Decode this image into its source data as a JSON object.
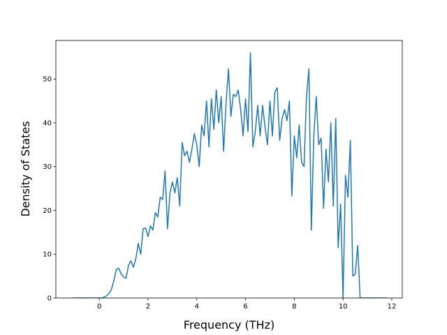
{
  "chart_data": {
    "type": "line",
    "x_label": "Frequency (THz)",
    "y_label": "Density of States",
    "x": [
      -1.1,
      0,
      0.1,
      0.2,
      0.3,
      0.4,
      0.5,
      0.6,
      0.7,
      0.8,
      0.9,
      1.0,
      1.1,
      1.2,
      1.3,
      1.4,
      1.5,
      1.6,
      1.7,
      1.8,
      1.9,
      2.0,
      2.1,
      2.2,
      2.3,
      2.4,
      2.5,
      2.6,
      2.7,
      2.8,
      2.9,
      3.0,
      3.1,
      3.2,
      3.3,
      3.4,
      3.5,
      3.6,
      3.7,
      3.8,
      3.9,
      4.0,
      4.1,
      4.2,
      4.3,
      4.4,
      4.5,
      4.6,
      4.7,
      4.8,
      4.9,
      5.0,
      5.1,
      5.2,
      5.3,
      5.4,
      5.5,
      5.6,
      5.7,
      5.8,
      5.9,
      6.0,
      6.1,
      6.2,
      6.3,
      6.4,
      6.5,
      6.6,
      6.7,
      6.8,
      6.9,
      7.0,
      7.1,
      7.2,
      7.3,
      7.4,
      7.5,
      7.6,
      7.7,
      7.8,
      7.9,
      8.0,
      8.1,
      8.2,
      8.3,
      8.4,
      8.5,
      8.6,
      8.7,
      8.8,
      8.9,
      9.0,
      9.1,
      9.2,
      9.3,
      9.4,
      9.5,
      9.6,
      9.7,
      9.8,
      9.9,
      10.0,
      10.1,
      10.2,
      10.3,
      10.4,
      10.5,
      10.6,
      10.7,
      10.8,
      11.8
    ],
    "values": [
      0,
      0,
      0,
      0.2,
      0.5,
      1,
      2,
      4,
      6.5,
      6.8,
      5.5,
      4.8,
      4.5,
      7.5,
      8.5,
      7,
      9,
      12.5,
      10,
      15.8,
      16,
      14,
      16.5,
      15.5,
      19.5,
      18.5,
      23,
      22.5,
      29,
      15.8,
      24,
      26.5,
      24,
      27.5,
      21,
      35.5,
      32.5,
      33.5,
      31,
      34,
      37.5,
      35,
      30,
      39.5,
      37,
      45,
      34.5,
      45.5,
      38.5,
      47.5,
      40,
      46,
      33.5,
      44.5,
      52.3,
      41.5,
      46.5,
      46,
      47.5,
      43,
      37,
      45.5,
      38,
      56,
      34.5,
      38,
      44,
      37,
      44,
      39,
      35,
      45,
      37,
      47,
      48,
      36,
      41,
      43,
      40.5,
      45,
      23.3,
      37,
      32,
      39.5,
      31,
      30,
      46,
      52.3,
      15.5,
      37,
      46,
      35,
      36.5,
      20.5,
      34,
      26.5,
      40,
      21,
      41,
      11.5,
      21.5,
      0,
      28,
      23,
      36,
      5,
      5.5,
      12,
      0,
      0,
      0
    ],
    "color": "#1f77b4",
    "xlim": [
      -1.78,
      12.43
    ],
    "xticks": [
      0,
      2,
      4,
      6,
      8,
      10,
      12
    ],
    "ylim": [
      0,
      58.8
    ],
    "yticks": [
      0,
      10,
      20,
      30,
      40,
      50
    ]
  }
}
